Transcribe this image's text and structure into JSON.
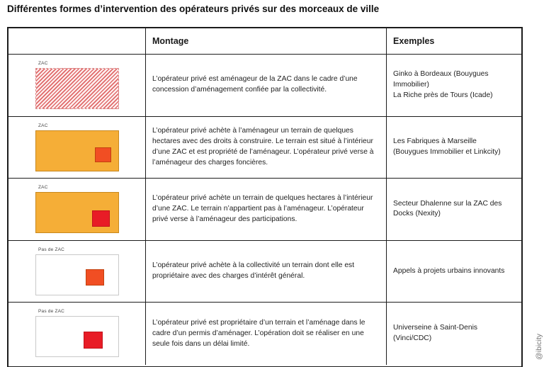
{
  "title": "Différentes formes d’intervention des opérateurs privés sur des morceaux de ville",
  "watermark": "@ibicity",
  "colors": {
    "orange_parcel": "#F5AE37",
    "orange_parcel_border": "#C8881E",
    "orange_red_square": "#F14E23",
    "red_square": "#E81C26",
    "hatch_stripe": "#E06A6A",
    "hatch_border": "#D98C8C"
  },
  "table": {
    "headers": {
      "diagram": "",
      "montage": "Montage",
      "exemples": "Exemples"
    },
    "rows": [
      {
        "diagram_label": "ZAC",
        "diagram_type": "zac-hatched-parcel",
        "montage": "L’opérateur privé est aménageur de la ZAC dans le cadre d’une concession d’aménagement confiée par la collectivité.",
        "exemples": "Ginko à Bordeaux (Bouygues Immobilier)\nLa Riche près de Tours (Icade)"
      },
      {
        "diagram_label": "ZAC",
        "diagram_type": "zac-parcel-with-orange-red-lot",
        "montage": "L’opérateur privé achète à l’aménageur un terrain de quelques hectares avec des droits à construire. Le terrain est situé à l’intérieur d’une ZAC et est propriété de l’aménageur. L’opérateur privé verse à l’aménageur des charges foncières.",
        "exemples": "Les Fabriques à Marseille\n(Bouygues Immobilier et Linkcity)"
      },
      {
        "diagram_label": "ZAC",
        "diagram_type": "zac-parcel-with-red-lot",
        "montage": "L’opérateur privé achète un terrain de quelques hectares à l’intérieur d’une ZAC. Le terrain n’appartient pas à l’aménageur. L’opérateur privé verse à l’aménageur des participations.",
        "exemples": "Secteur Dhalenne sur la ZAC des Docks (Nexity)"
      },
      {
        "diagram_label": "Pas de ZAC",
        "diagram_type": "no-zac-with-orange-red-lot",
        "montage": "L’opérateur privé achète à la collectivité un terrain dont elle est propriétaire avec des charges d’intérêt général.",
        "exemples": "Appels à projets urbains innovants"
      },
      {
        "diagram_label": "Pas de ZAC",
        "diagram_type": "no-zac-with-red-lot",
        "montage": "L’opérateur privé est propriétaire d’un terrain et l’aménage dans le cadre d’un permis d’aménager. L’opération doit se réaliser en une seule fois dans un délai limité.",
        "exemples": "Universeine à Saint-Denis\n(Vinci/CDC)"
      }
    ]
  }
}
